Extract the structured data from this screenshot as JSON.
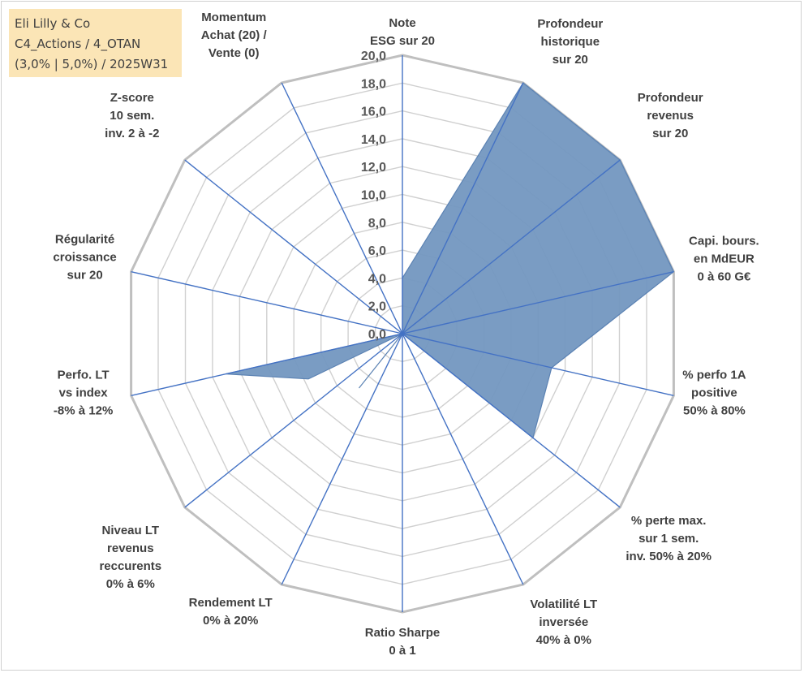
{
  "info": {
    "line1": "Eli Lilly & Co",
    "line2": "C4_Actions / 4_OTAN",
    "line3": "(3,0% | 5,0%) / 2025W31"
  },
  "chart_data": {
    "type": "radar",
    "rmin": 0,
    "rmax": 20,
    "tick_step": 2,
    "tick_labels": [
      "0,0",
      "2,0",
      "4,0",
      "6,0",
      "8,0",
      "10,0",
      "12,0",
      "14,0",
      "16,0",
      "18,0",
      "20,0"
    ],
    "axes": [
      {
        "label": [
          "Note",
          "ESG sur 20"
        ],
        "value": 4.0
      },
      {
        "label": [
          "Profondeur",
          "historique",
          "sur 20"
        ],
        "value": 20.0
      },
      {
        "label": [
          "Profondeur",
          "revenus",
          "sur 20"
        ],
        "value": 20.0
      },
      {
        "label": [
          "Capi. bours.",
          "en MdEUR",
          "0 à 60 G€"
        ],
        "value": 20.0
      },
      {
        "label": [
          "% perfo 1A",
          "positive",
          "50% à 80%"
        ],
        "value": 11.0
      },
      {
        "label": [
          "% perte max.",
          "sur 1 sem.",
          "inv. 50% à 20%"
        ],
        "value": 12.0
      },
      {
        "label": [
          "Volatilité LT",
          "inversée",
          "40% à 0%"
        ],
        "value": 0.0
      },
      {
        "label": [
          "Ratio Sharpe",
          "0 à 1"
        ],
        "value": 0.0
      },
      {
        "label": [
          "Rendement LT",
          "0% à 20%"
        ],
        "value": 0.0
      },
      {
        "label": [
          "Niveau LT",
          "revenus",
          "reccurents",
          "0% à 6%"
        ],
        "value": 0.0
      },
      {
        "label": [
          "Perfo. LT",
          "vs index",
          "-8% à 12%"
        ],
        "value": 13.0
      },
      {
        "label": [
          "Régularité",
          "croissance",
          "sur 20"
        ],
        "value": 0.0
      },
      {
        "label": [
          "Z-score",
          "10 sem.",
          "inv. 2 à -2"
        ],
        "value": 0.0
      },
      {
        "label": [
          "Momentum",
          "Achat (20) /",
          "Vente (0)"
        ],
        "value": 0.0
      }
    ],
    "between_axes": [
      {
        "after_axis": 9,
        "value": 7.5
      },
      {
        "after_axis": 8,
        "value": 5.0
      }
    ],
    "grid": true,
    "legend": "none"
  }
}
